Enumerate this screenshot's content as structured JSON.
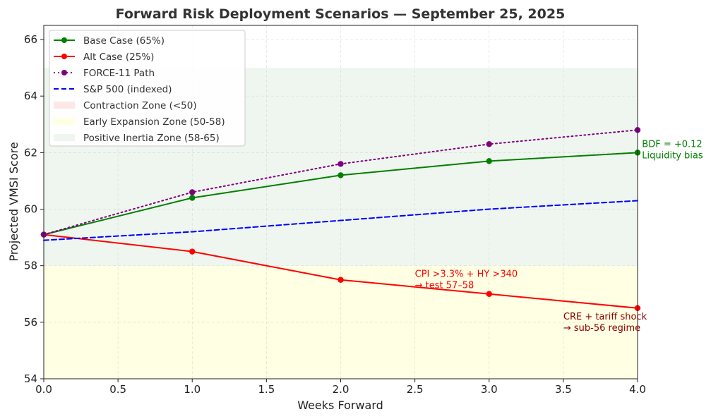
{
  "chart_data": {
    "type": "line",
    "title": "Forward Risk Deployment Scenarios — September 25, 2025",
    "xlabel": "Weeks Forward",
    "ylabel": "Projected VMSI Score",
    "xlim": [
      0,
      4
    ],
    "ylim": [
      54,
      66.5
    ],
    "xticks": [
      "0.0",
      "0.5",
      "1.0",
      "1.5",
      "2.0",
      "2.5",
      "3.0",
      "3.5",
      "4.0"
    ],
    "yticks": [
      "54",
      "56",
      "58",
      "60",
      "62",
      "64",
      "66"
    ],
    "grid": true,
    "legend_position": "top-left",
    "x": [
      0,
      1,
      2,
      3,
      4
    ],
    "series": [
      {
        "name": "Base Case (65%)",
        "values": [
          59.1,
          60.4,
          61.2,
          61.7,
          62.0
        ],
        "color": "#008000",
        "style": "solid",
        "marker": true
      },
      {
        "name": "Alt Case (25%)",
        "values": [
          59.1,
          58.5,
          57.5,
          57.0,
          56.5
        ],
        "color": "#ff0000",
        "style": "solid",
        "marker": true
      },
      {
        "name": "FORCE-11 Path",
        "values": [
          59.1,
          60.6,
          61.6,
          62.3,
          62.8
        ],
        "color": "#800080",
        "style": "dotted",
        "marker": true
      },
      {
        "name": "S&P 500 (indexed)",
        "values": [
          58.9,
          59.2,
          59.6,
          60.0,
          60.3
        ],
        "color": "#0000ff",
        "style": "dashed",
        "marker": false
      }
    ],
    "zones": [
      {
        "name": "Contraction Zone (<50)",
        "range": [
          0,
          50
        ],
        "color": "#fde8e8"
      },
      {
        "name": "Early Expansion Zone (50-58)",
        "range": [
          50,
          58
        ],
        "color": "#ffffe3"
      },
      {
        "name": "Positive Inertia Zone (58-65)",
        "range": [
          58,
          65
        ],
        "color": "#eff6ef"
      }
    ],
    "annotations": [
      {
        "lines": [
          "BDF = +0.12",
          "Liquidity bias"
        ],
        "x": 4.03,
        "y": 62.2,
        "color": "#008000"
      },
      {
        "lines": [
          "CPI >3.3% + HY >340",
          "→ test 57–58"
        ],
        "x": 2.5,
        "y": 57.6,
        "color": "#ff0000"
      },
      {
        "lines": [
          "CRE + tariff shock",
          "→ sub-56 regime"
        ],
        "x": 3.5,
        "y": 56.1,
        "color": "#8b0000"
      }
    ]
  }
}
